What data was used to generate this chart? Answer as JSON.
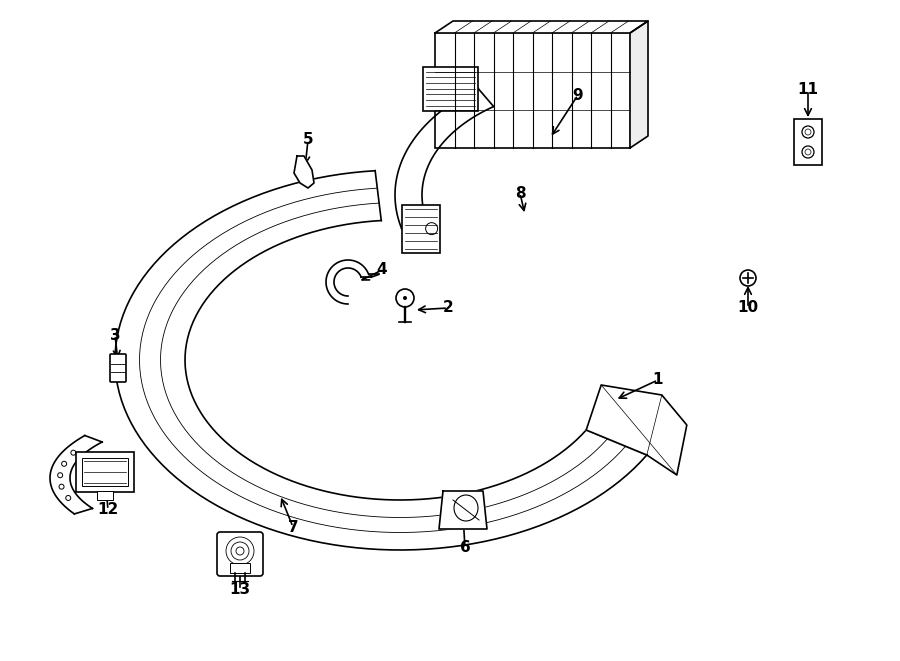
{
  "background_color": "#ffffff",
  "line_color": "#000000",
  "lw": 1.2
}
